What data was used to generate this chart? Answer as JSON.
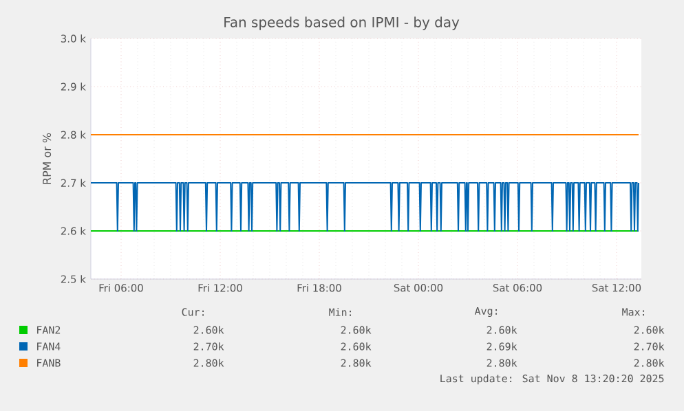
{
  "chart_data": {
    "type": "line",
    "title": "Fan speeds based on IPMI - by day",
    "ylabel": "RPM or %",
    "xlim": [
      "2025-11-07T04:10",
      "2025-11-08T13:30"
    ],
    "ylim": [
      2500,
      3000
    ],
    "xticks": [
      {
        "value": "2025-11-07T06:00",
        "label": "Fri 06:00"
      },
      {
        "value": "2025-11-07T12:00",
        "label": "Fri 12:00"
      },
      {
        "value": "2025-11-07T18:00",
        "label": "Fri 18:00"
      },
      {
        "value": "2025-11-08T00:00",
        "label": "Sat 00:00"
      },
      {
        "value": "2025-11-08T06:00",
        "label": "Sat 06:00"
      },
      {
        "value": "2025-11-08T12:00",
        "label": "Sat 12:00"
      }
    ],
    "yticks": [
      {
        "value": 2500,
        "label": "2.5 k"
      },
      {
        "value": 2600,
        "label": "2.6 k"
      },
      {
        "value": 2700,
        "label": "2.7 k"
      },
      {
        "value": 2800,
        "label": "2.8 k"
      },
      {
        "value": 2900,
        "label": "2.9 k"
      },
      {
        "value": 3000,
        "label": "3.0 k"
      }
    ],
    "grid": true,
    "legend": "bottom",
    "series": [
      {
        "name": "FAN2",
        "color": "#00cc00",
        "x": [
          "2025-11-07T04:10",
          "2025-11-08T13:20"
        ],
        "values": [
          2600,
          2600
        ]
      },
      {
        "name": "FAN4",
        "color": "#0066b3",
        "x": [
          "2025-11-07T04:10",
          "2025-11-07T05:44",
          "2025-11-07T05:47",
          "2025-11-07T05:50",
          "2025-11-07T06:44",
          "2025-11-07T06:47",
          "2025-11-07T06:50",
          "2025-11-07T06:53",
          "2025-11-07T06:56",
          "2025-11-07T06:59",
          "2025-11-07T09:19",
          "2025-11-07T09:22",
          "2025-11-07T09:25",
          "2025-11-07T09:32",
          "2025-11-07T09:35",
          "2025-11-07T09:38",
          "2025-11-07T09:46",
          "2025-11-07T09:49",
          "2025-11-07T09:52",
          "2025-11-07T09:59",
          "2025-11-07T10:02",
          "2025-11-07T10:05",
          "2025-11-07T11:07",
          "2025-11-07T11:10",
          "2025-11-07T11:13",
          "2025-11-07T11:44",
          "2025-11-07T11:47",
          "2025-11-07T11:50",
          "2025-11-07T12:38",
          "2025-11-07T12:41",
          "2025-11-07T12:44",
          "2025-11-07T13:12",
          "2025-11-07T13:15",
          "2025-11-07T13:18",
          "2025-11-07T13:41",
          "2025-11-07T13:44",
          "2025-11-07T13:47",
          "2025-11-07T13:52",
          "2025-11-07T13:55",
          "2025-11-07T13:58",
          "2025-11-07T15:23",
          "2025-11-07T15:26",
          "2025-11-07T15:29",
          "2025-11-07T15:35",
          "2025-11-07T15:38",
          "2025-11-07T15:41",
          "2025-11-07T16:08",
          "2025-11-07T16:11",
          "2025-11-07T16:14",
          "2025-11-07T16:44",
          "2025-11-07T16:47",
          "2025-11-07T16:50",
          "2025-11-07T18:26",
          "2025-11-07T18:29",
          "2025-11-07T18:32",
          "2025-11-07T19:29",
          "2025-11-07T19:32",
          "2025-11-07T19:35",
          "2025-11-07T22:19",
          "2025-11-07T22:22",
          "2025-11-07T22:25",
          "2025-11-07T22:46",
          "2025-11-07T22:49",
          "2025-11-07T22:52",
          "2025-11-07T23:20",
          "2025-11-07T23:23",
          "2025-11-07T23:26",
          "2025-11-08T00:04",
          "2025-11-08T00:07",
          "2025-11-08T00:10",
          "2025-11-08T00:44",
          "2025-11-08T00:47",
          "2025-11-08T00:50",
          "2025-11-08T01:05",
          "2025-11-08T01:08",
          "2025-11-08T01:11",
          "2025-11-08T01:19",
          "2025-11-08T01:22",
          "2025-11-08T01:25",
          "2025-11-08T02:22",
          "2025-11-08T02:25",
          "2025-11-08T02:28",
          "2025-11-08T02:49",
          "2025-11-08T02:52",
          "2025-11-08T02:55",
          "2025-11-08T02:57",
          "2025-11-08T03:00",
          "2025-11-08T03:03",
          "2025-11-08T03:35",
          "2025-11-08T03:38",
          "2025-11-08T03:41",
          "2025-11-08T04:08",
          "2025-11-08T04:11",
          "2025-11-08T04:14",
          "2025-11-08T04:34",
          "2025-11-08T04:37",
          "2025-11-08T04:40",
          "2025-11-08T04:59",
          "2025-11-08T05:02",
          "2025-11-08T05:05",
          "2025-11-08T05:11",
          "2025-11-08T05:14",
          "2025-11-08T05:17",
          "2025-11-08T05:23",
          "2025-11-08T05:26",
          "2025-11-08T05:29",
          "2025-11-08T06:02",
          "2025-11-08T06:05",
          "2025-11-08T06:08",
          "2025-11-08T06:49",
          "2025-11-08T06:52",
          "2025-11-08T06:55",
          "2025-11-08T08:04",
          "2025-11-08T08:07",
          "2025-11-08T08:10",
          "2025-11-08T08:56",
          "2025-11-08T08:59",
          "2025-11-08T09:02",
          "2025-11-08T09:07",
          "2025-11-08T09:10",
          "2025-11-08T09:13",
          "2025-11-08T09:19",
          "2025-11-08T09:22",
          "2025-11-08T09:25",
          "2025-11-08T09:41",
          "2025-11-08T09:44",
          "2025-11-08T09:47",
          "2025-11-08T10:04",
          "2025-11-08T10:07",
          "2025-11-08T10:10",
          "2025-11-08T10:22",
          "2025-11-08T10:25",
          "2025-11-08T10:28",
          "2025-11-08T10:41",
          "2025-11-08T10:44",
          "2025-11-08T10:47",
          "2025-11-08T11:14",
          "2025-11-08T11:17",
          "2025-11-08T11:20",
          "2025-11-08T11:38",
          "2025-11-08T11:41",
          "2025-11-08T11:44",
          "2025-11-08T12:50",
          "2025-11-08T12:53",
          "2025-11-08T12:56",
          "2025-11-08T13:02",
          "2025-11-08T13:05",
          "2025-11-08T13:08",
          "2025-11-08T13:14",
          "2025-11-08T13:17",
          "2025-11-08T13:20"
        ],
        "values": [
          2700,
          2700,
          2600,
          2700,
          2700,
          2600,
          2700,
          2700,
          2600,
          2700,
          2700,
          2600,
          2700,
          2700,
          2600,
          2700,
          2700,
          2600,
          2700,
          2700,
          2600,
          2700,
          2700,
          2600,
          2700,
          2700,
          2600,
          2700,
          2700,
          2600,
          2700,
          2700,
          2600,
          2700,
          2700,
          2600,
          2700,
          2700,
          2600,
          2700,
          2700,
          2600,
          2700,
          2700,
          2600,
          2700,
          2700,
          2600,
          2700,
          2700,
          2600,
          2700,
          2700,
          2600,
          2700,
          2700,
          2600,
          2700,
          2700,
          2600,
          2700,
          2700,
          2600,
          2700,
          2700,
          2600,
          2700,
          2700,
          2600,
          2700,
          2700,
          2600,
          2700,
          2700,
          2600,
          2700,
          2700,
          2600,
          2700,
          2700,
          2600,
          2700,
          2700,
          2600,
          2700,
          2700,
          2600,
          2700,
          2700,
          2600,
          2700,
          2700,
          2600,
          2700,
          2700,
          2600,
          2700,
          2700,
          2600,
          2700,
          2700,
          2600,
          2700,
          2700,
          2600,
          2700,
          2700,
          2600,
          2700,
          2700,
          2600,
          2700,
          2700,
          2600,
          2700,
          2700,
          2600,
          2700,
          2700,
          2600,
          2700,
          2700,
          2600,
          2700,
          2700,
          2600,
          2700,
          2700,
          2600,
          2700,
          2700,
          2600,
          2700,
          2700,
          2600,
          2700,
          2700,
          2600,
          2700,
          2700,
          2600,
          2700,
          2700,
          2600,
          2700,
          2700,
          2600,
          2700,
          2700,
          2600,
          2700
        ]
      },
      {
        "name": "FANB",
        "color": "#ff7f00",
        "x": [
          "2025-11-07T04:10",
          "2025-11-08T13:20"
        ],
        "values": [
          2800,
          2800
        ]
      }
    ],
    "annotations": [
      "Cur:",
      "Min:",
      "Avg:",
      "Max:",
      "2.60k",
      "2.60k",
      "2.60k",
      "2.60k",
      "2.70k",
      "2.60k",
      "2.69k",
      "2.70k",
      "2.80k",
      "2.80k",
      "2.80k",
      "2.80k",
      "Last update: Sat Nov  8 13:20:20 2025"
    ]
  }
}
